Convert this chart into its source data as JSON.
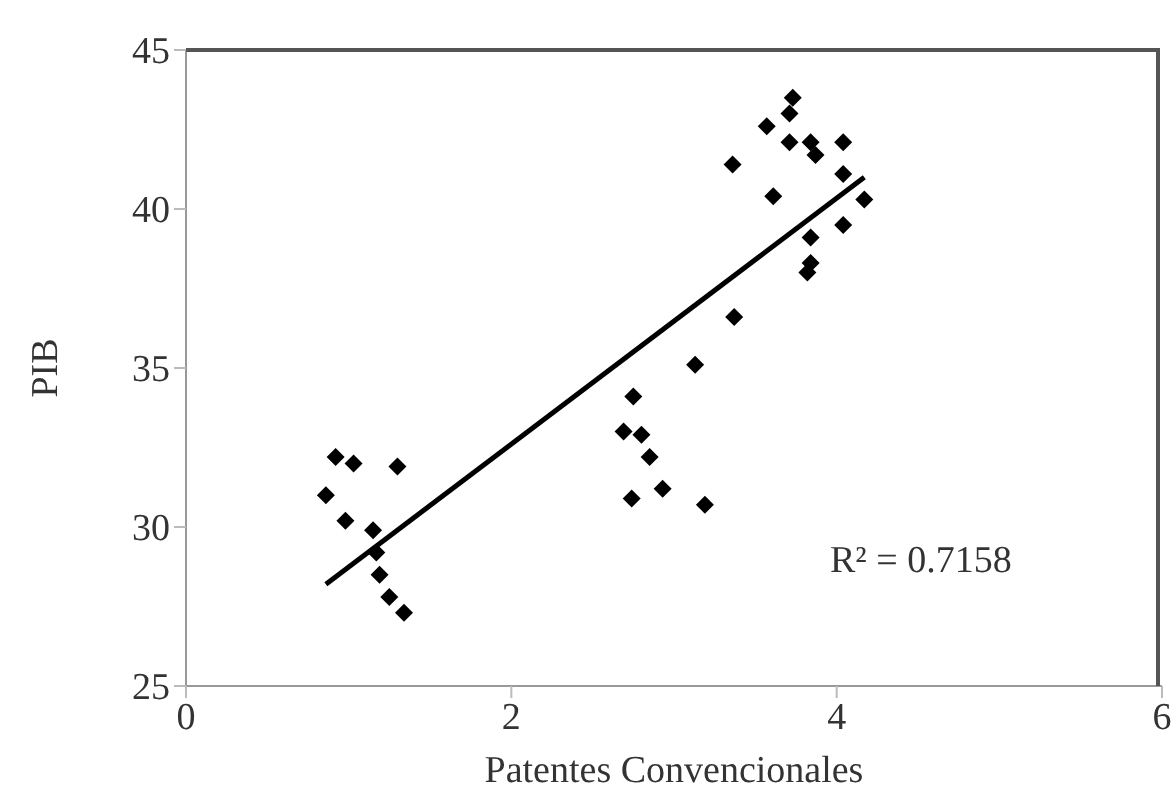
{
  "chart_data": {
    "type": "scatter",
    "xlabel": "Patentes Convencionales",
    "ylabel": "PIB",
    "xlim": [
      0,
      6
    ],
    "xticks": [
      0,
      2,
      4,
      6
    ],
    "ylim": [
      25,
      45
    ],
    "yticks": [
      25,
      30,
      35,
      40,
      45
    ],
    "marker": "diamond",
    "annotations": [
      "R² = 0.7158"
    ],
    "series": [
      {
        "color": "#000000",
        "x": [
          0.86,
          0.92,
          1.03,
          0.98,
          1.3,
          1.15,
          1.17,
          1.19,
          1.25,
          1.34,
          3.73,
          3.71,
          3.57,
          3.71,
          3.84,
          3.87,
          4.04,
          3.36,
          4.04,
          4.17,
          3.61,
          4.04,
          3.84,
          3.84,
          3.82,
          3.37,
          3.13,
          2.75,
          2.69,
          2.8,
          2.85,
          2.74,
          2.93,
          3.19
        ],
        "values": [
          31.0,
          32.2,
          32.0,
          30.2,
          31.9,
          29.9,
          29.2,
          28.5,
          27.8,
          27.3,
          43.5,
          43.0,
          42.6,
          42.1,
          42.1,
          41.7,
          42.1,
          41.4,
          41.1,
          40.3,
          40.4,
          39.5,
          39.1,
          38.3,
          38.0,
          36.6,
          35.1,
          34.1,
          33.0,
          32.9,
          32.2,
          30.9,
          31.2,
          30.7
        ]
      },
      {
        "type": "line",
        "color": "#000000",
        "marker": "none",
        "line_style": "solid",
        "x": [
          0.86,
          4.17
        ],
        "values": [
          28.2,
          41.0
        ]
      }
    ]
  }
}
